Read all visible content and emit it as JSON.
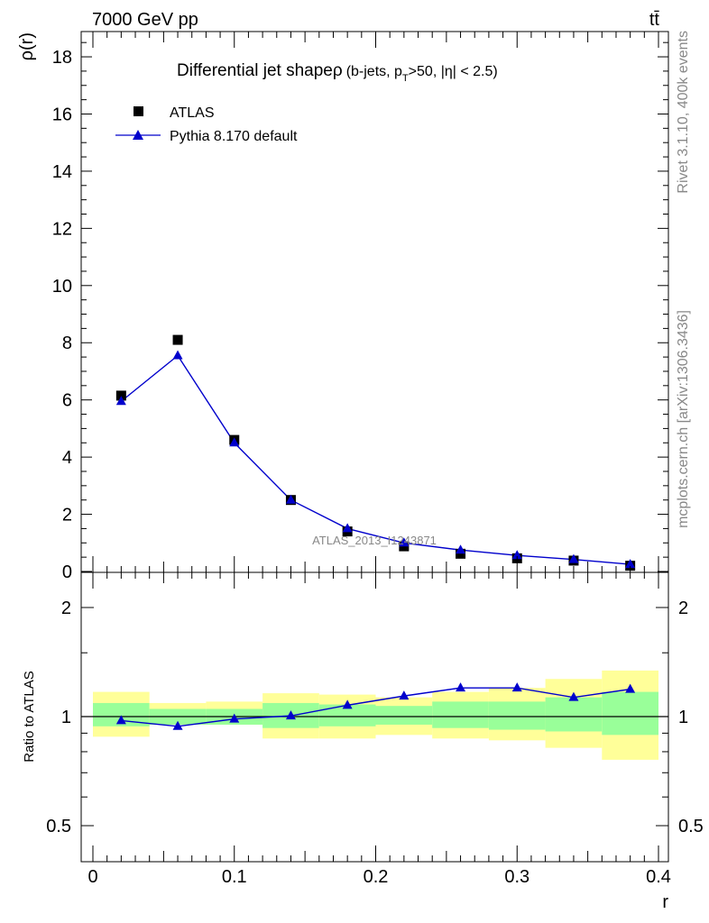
{
  "header": {
    "left": "7000 GeV pp",
    "right": "tt̄"
  },
  "side_labels": {
    "rivet": "Rivet 3.1.10,  400k events",
    "mcplots": "mcplots.cern.ch [arXiv:1306.3436]"
  },
  "colors": {
    "data": "#000000",
    "mc": "#0000cc",
    "band_inner": "#99ff99",
    "band_outer": "#ffff99"
  },
  "chart_data": [
    {
      "type": "scatter",
      "title": "Differential jet shapeρ",
      "subtitle": "(b-jets, p_T>50, |η| < 2.5)",
      "title_parts": {
        "main": "Differential jet shapeρ",
        "sub_a": "(b-jets, p",
        "sub_b": "T",
        "sub_c": ">50, |η| < 2.5)"
      },
      "ylabel": "ρ(r)",
      "xlabel": "",
      "watermark": "ATLAS_2013_I1243871",
      "xlim": [
        0,
        0.4
      ],
      "ylim": [
        0,
        19
      ],
      "y_ticks": [
        0,
        2,
        4,
        6,
        8,
        10,
        12,
        14,
        16,
        18
      ],
      "y_tick_labels": [
        "0",
        "2",
        "4",
        "6",
        "8",
        "10",
        "12",
        "14",
        "16",
        "18"
      ],
      "grid": false,
      "legend_position": "top-left",
      "x": [
        0.02,
        0.06,
        0.1,
        0.14,
        0.18,
        0.22,
        0.26,
        0.3,
        0.34,
        0.38
      ],
      "series": [
        {
          "name": "ATLAS",
          "marker": "square",
          "values": [
            6.15,
            8.1,
            4.6,
            2.5,
            1.4,
            0.88,
            0.62,
            0.46,
            0.38,
            0.2
          ]
        },
        {
          "name": "Pythia 8.170 default",
          "marker": "triangle",
          "values": [
            5.95,
            7.55,
            4.5,
            2.5,
            1.5,
            1.0,
            0.75,
            0.56,
            0.42,
            0.25
          ]
        }
      ]
    },
    {
      "type": "line",
      "ylabel": "Ratio to ATLAS",
      "xlabel": "r",
      "xlim": [
        0,
        0.4
      ],
      "ylim": [
        0.4,
        2.3
      ],
      "y_scale": "log",
      "y_ticks": [
        0.5,
        1,
        2
      ],
      "y_tick_labels": [
        "0.5",
        "1",
        "2"
      ],
      "x_ticks": [
        0,
        0.1,
        0.2,
        0.3,
        0.4
      ],
      "x_tick_labels": [
        "0",
        "0.1",
        "0.2",
        "0.3",
        "0.4"
      ],
      "reference_line": 1,
      "bin_edges": [
        0,
        0.04,
        0.08,
        0.12,
        0.16,
        0.2,
        0.24,
        0.28,
        0.32,
        0.36,
        0.4
      ],
      "band_inner": [
        [
          0.94,
          1.09
        ],
        [
          0.95,
          1.05
        ],
        [
          0.95,
          1.05
        ],
        [
          0.93,
          1.09
        ],
        [
          0.94,
          1.08
        ],
        [
          0.95,
          1.07
        ],
        [
          0.93,
          1.1
        ],
        [
          0.92,
          1.1
        ],
        [
          0.91,
          1.13
        ],
        [
          0.89,
          1.17
        ]
      ],
      "band_outer": [
        [
          0.88,
          1.17
        ],
        [
          0.95,
          1.09
        ],
        [
          0.95,
          1.1
        ],
        [
          0.87,
          1.16
        ],
        [
          0.87,
          1.15
        ],
        [
          0.89,
          1.13
        ],
        [
          0.87,
          1.17
        ],
        [
          0.86,
          1.2
        ],
        [
          0.82,
          1.27
        ],
        [
          0.76,
          1.34
        ]
      ],
      "x": [
        0.02,
        0.06,
        0.1,
        0.14,
        0.18,
        0.22,
        0.26,
        0.3,
        0.34,
        0.38
      ],
      "series": [
        {
          "name": "Pythia 8.170 default",
          "values": [
            0.975,
            0.94,
            0.985,
            1.005,
            1.075,
            1.14,
            1.2,
            1.2,
            1.13,
            1.19
          ]
        }
      ]
    }
  ]
}
